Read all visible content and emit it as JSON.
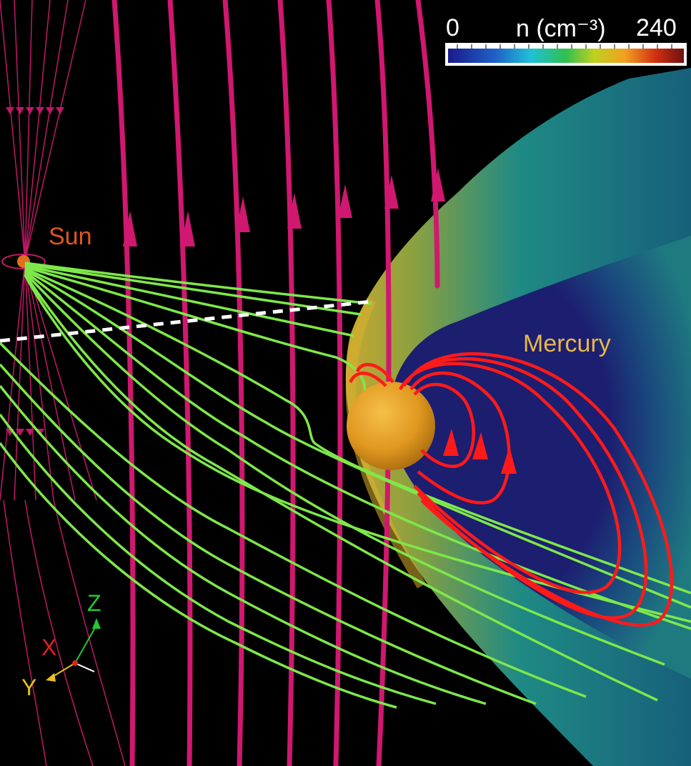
{
  "labels": {
    "sun": "Sun",
    "mercury": "Mercury"
  },
  "colorbar": {
    "min_label": "0",
    "title": "n (cm⁻³)",
    "max_label": "240",
    "min_value": 0,
    "max_value": 240,
    "unit": "cm⁻³",
    "colors": [
      "#1a1a8a",
      "#2060c8",
      "#20c0d8",
      "#30c050",
      "#c0d020",
      "#f0a020",
      "#d03010",
      "#701010"
    ]
  },
  "axes_triad": {
    "z": "Z",
    "x": "X",
    "y": "Y"
  },
  "colors": {
    "background": "#000000",
    "imf_field_lines": "#d01870",
    "solar_wind_lines": "#7ee84a",
    "magnetosphere_lines": "#ff1a1a",
    "planet": "#e8a020",
    "sun_line_color": "#ffffff",
    "density_low": "#1c1d6e",
    "density_mid": "#1f8a84"
  }
}
